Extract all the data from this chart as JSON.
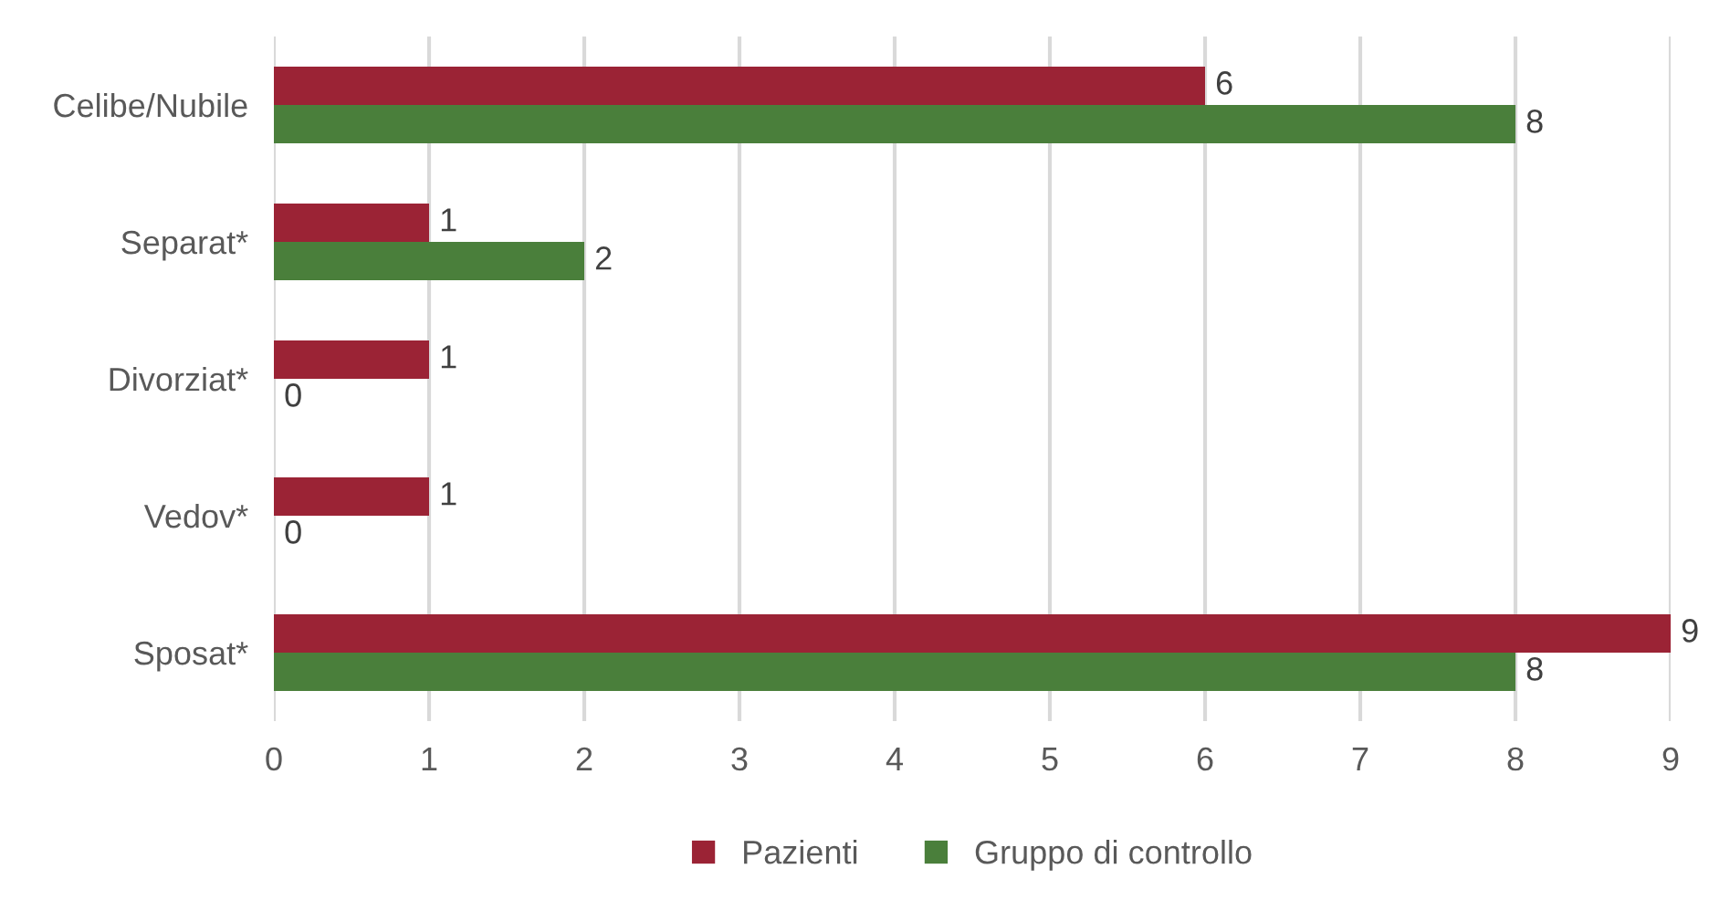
{
  "chart_data": {
    "type": "bar",
    "orientation": "horizontal",
    "categories": [
      "Celibe/Nubile",
      "Separat*",
      "Divorziat*",
      "Vedov*",
      "Sposat*"
    ],
    "series": [
      {
        "name": "Pazienti",
        "color": "#9b2335",
        "values": [
          6,
          1,
          1,
          1,
          9
        ]
      },
      {
        "name": "Gruppo di controllo",
        "color": "#4a7f3b",
        "values": [
          8,
          2,
          0,
          0,
          8
        ]
      }
    ],
    "xlim": [
      0,
      9
    ],
    "xticks": [
      0,
      1,
      2,
      3,
      4,
      5,
      6,
      7,
      8,
      9
    ],
    "grid": "x",
    "legend": "bottom",
    "data_labels": true
  }
}
